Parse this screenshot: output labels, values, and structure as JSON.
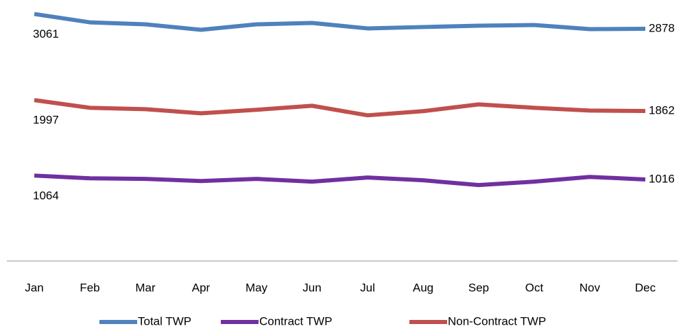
{
  "chart_data": {
    "type": "line",
    "categories": [
      "Jan",
      "Feb",
      "Mar",
      "Apr",
      "May",
      "Jun",
      "Jul",
      "Aug",
      "Sep",
      "Oct",
      "Nov",
      "Dec"
    ],
    "series": [
      {
        "name": "Total TWP",
        "color": "#4f81bd",
        "values": [
          3061,
          2958,
          2933,
          2866,
          2933,
          2950,
          2883,
          2900,
          2916,
          2925,
          2874,
          2878
        ]
      },
      {
        "name": "Contract TWP",
        "color": "#7030a0",
        "values": [
          1064,
          1031,
          1023,
          997,
          1023,
          989,
          1040,
          1006,
          947,
          989,
          1048,
          1016
        ]
      },
      {
        "name": "Non-Contract TWP",
        "color": "#c0504d",
        "values": [
          1997,
          1902,
          1885,
          1834,
          1877,
          1927,
          1809,
          1860,
          1944,
          1902,
          1868,
          1862
        ]
      }
    ],
    "ylim": [
      0,
      3200
    ],
    "legend": "bottom"
  }
}
